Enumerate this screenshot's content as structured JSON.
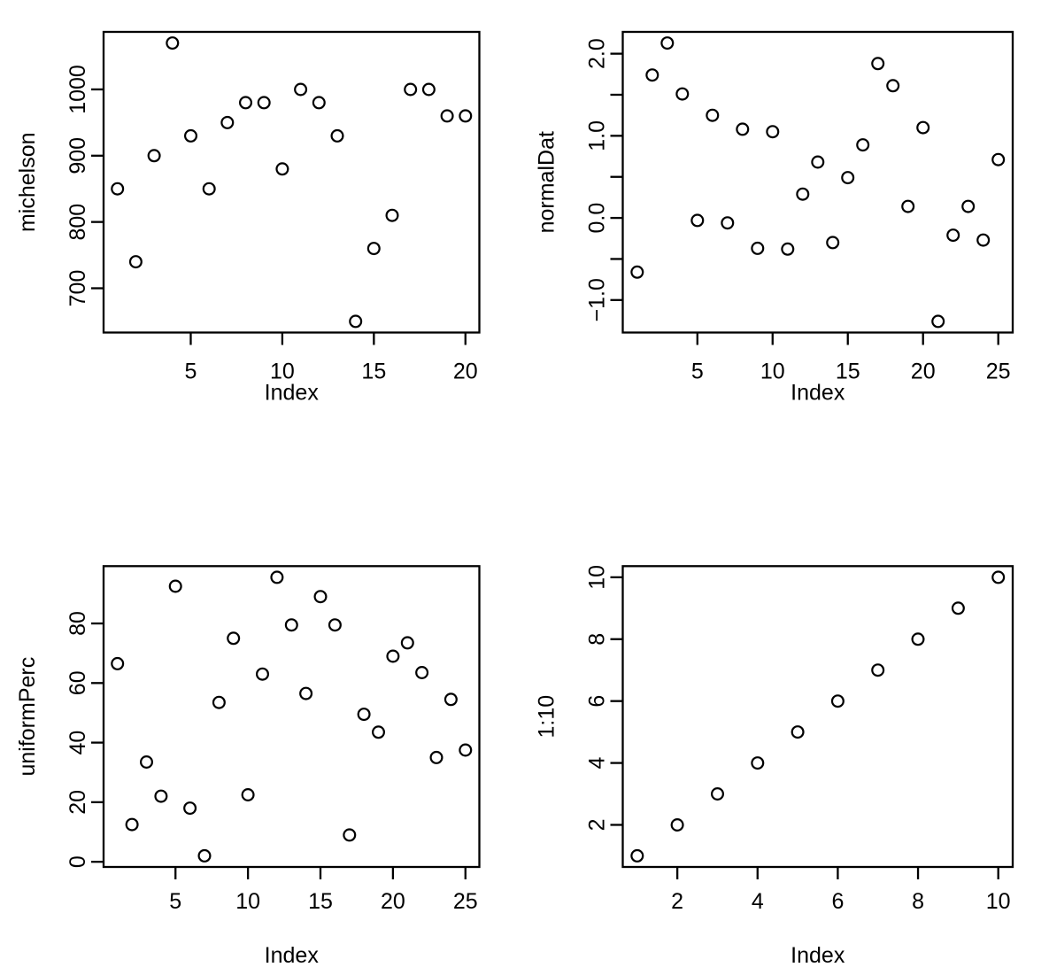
{
  "figure": {
    "background": "#ffffff",
    "foreground": "#000000",
    "marker": "open-circle",
    "panel_count": 4
  },
  "chart_data": [
    {
      "type": "scatter",
      "title": "",
      "xlabel": "Index",
      "ylabel": "michelson",
      "x": [
        1,
        2,
        3,
        4,
        5,
        6,
        7,
        8,
        9,
        10,
        11,
        12,
        13,
        14,
        15,
        16,
        17,
        18,
        19,
        20
      ],
      "y": [
        850,
        740,
        900,
        1070,
        930,
        850,
        950,
        980,
        980,
        880,
        1000,
        980,
        930,
        650,
        760,
        810,
        1000,
        1000,
        960,
        960
      ],
      "xlim": [
        1,
        20
      ],
      "ylim": [
        650,
        1070
      ],
      "xticks": {
        "values": [
          5,
          10,
          15,
          20
        ],
        "labels": [
          "5",
          "10",
          "15",
          "20"
        ]
      },
      "yticks": {
        "values": [
          700,
          800,
          900,
          1000
        ],
        "labels": [
          "700",
          "800",
          "900",
          "1000"
        ]
      },
      "grid": false,
      "legend": false
    },
    {
      "type": "scatter",
      "title": "",
      "xlabel": "Index",
      "ylabel": "normalDat",
      "x": [
        1,
        2,
        3,
        4,
        5,
        6,
        7,
        8,
        9,
        10,
        11,
        12,
        13,
        14,
        15,
        16,
        17,
        18,
        19,
        20,
        21,
        22,
        23,
        24,
        25
      ],
      "y": [
        -0.66,
        1.74,
        2.13,
        1.51,
        -0.03,
        1.25,
        -0.06,
        1.08,
        -0.37,
        1.05,
        -0.38,
        0.29,
        0.68,
        -0.3,
        0.49,
        0.89,
        1.88,
        1.61,
        0.14,
        1.1,
        -1.26,
        -0.21,
        0.14,
        -0.27,
        0.71
      ],
      "xlim": [
        1,
        25
      ],
      "ylim": [
        -1.26,
        2.13
      ],
      "xticks": {
        "values": [
          5,
          10,
          15,
          20,
          25
        ],
        "labels": [
          "5",
          "10",
          "15",
          "20",
          "25"
        ]
      },
      "yticks": {
        "values": [
          -1.0,
          -0.5,
          0.0,
          0.5,
          1.0,
          1.5,
          2.0
        ],
        "labels": [
          "−1.0",
          "",
          "0.0",
          "",
          "1.0",
          "",
          "2.0"
        ]
      },
      "grid": false,
      "legend": false
    },
    {
      "type": "scatter",
      "title": "",
      "xlabel": "Index",
      "ylabel": "uniformPerc",
      "x": [
        1,
        2,
        3,
        4,
        5,
        6,
        7,
        8,
        9,
        10,
        11,
        12,
        13,
        14,
        15,
        16,
        17,
        18,
        19,
        20,
        21,
        22,
        23,
        24,
        25
      ],
      "y": [
        66.5,
        12.5,
        33.5,
        22,
        92.5,
        18,
        2,
        53.5,
        75,
        22.5,
        63,
        95.5,
        79.5,
        56.5,
        89,
        79.5,
        9,
        49.5,
        43.5,
        69,
        73.5,
        63.5,
        35,
        54.5,
        37.5
      ],
      "xlim": [
        1,
        25
      ],
      "ylim": [
        2,
        95.5
      ],
      "xticks": {
        "values": [
          5,
          10,
          15,
          20,
          25
        ],
        "labels": [
          "5",
          "10",
          "15",
          "20",
          "25"
        ]
      },
      "yticks": {
        "values": [
          0,
          20,
          40,
          60,
          80
        ],
        "labels": [
          "0",
          "20",
          "40",
          "60",
          "80"
        ]
      },
      "grid": false,
      "legend": false
    },
    {
      "type": "scatter",
      "title": "",
      "xlabel": "Index",
      "ylabel": "1:10",
      "x": [
        1,
        2,
        3,
        4,
        5,
        6,
        7,
        8,
        9,
        10
      ],
      "y": [
        1,
        2,
        3,
        4,
        5,
        6,
        7,
        8,
        9,
        10
      ],
      "xlim": [
        1,
        10
      ],
      "ylim": [
        1,
        10
      ],
      "xticks": {
        "values": [
          2,
          4,
          6,
          8,
          10
        ],
        "labels": [
          "2",
          "4",
          "6",
          "8",
          "10"
        ]
      },
      "yticks": {
        "values": [
          2,
          4,
          6,
          8,
          10
        ],
        "labels": [
          "2",
          "4",
          "6",
          "8",
          "10"
        ]
      },
      "grid": false,
      "legend": false
    }
  ]
}
